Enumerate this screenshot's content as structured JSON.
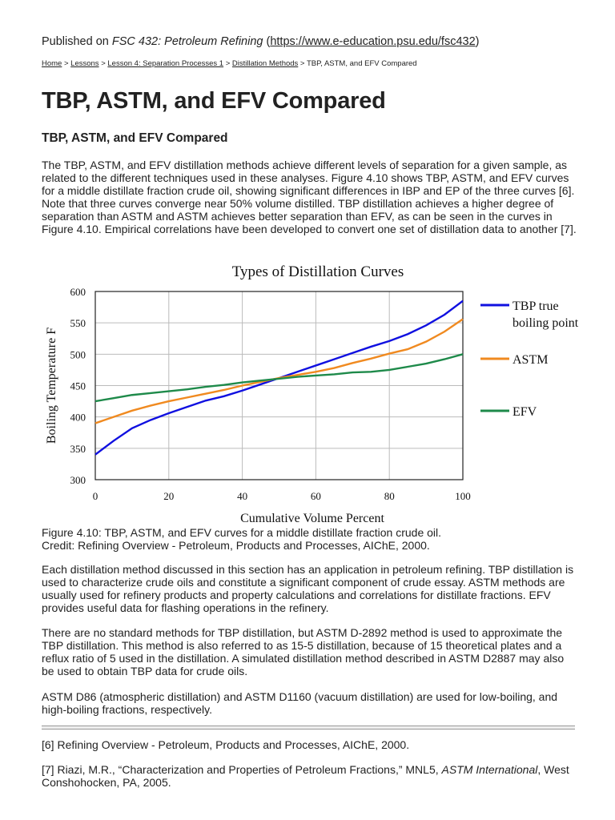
{
  "published": {
    "prefix": "Published on ",
    "site": "FSC 432: Petroleum Refining",
    "open": " (",
    "url": "https://www.e-education.psu.edu/fsc432",
    "close": ")"
  },
  "breadcrumb": [
    {
      "label": "Home",
      "link": true
    },
    {
      "label": "Lessons",
      "link": true
    },
    {
      "label": "Lesson 4: Separation Processes 1",
      "link": true
    },
    {
      "label": "Distillation Methods",
      "link": true
    },
    {
      "label": "TBP, ASTM, and EFV Compared",
      "link": false
    }
  ],
  "page_title": "TBP, ASTM, and EFV Compared",
  "section_title": "TBP, ASTM, and EFV Compared",
  "paragraphs": [
    "The TBP, ASTM, and EFV distillation methods achieve different levels of separation for a given sample, as related to the different techniques used in these analyses. Figure 4.10 shows TBP, ASTM, and EFV curves for a middle distillate fraction crude oil, showing significant differences in IBP and EP of the three curves [6]. Note that three curves converge near 50% volume distilled. TBP distillation achieves a higher degree of separation than ASTM and ASTM achieves better separation than EFV, as can be seen in the curves in Figure 4.10. Empirical correlations have been developed to convert one set of distillation data to another [7].",
    "Each distillation method discussed in this section has an application in petroleum refining. TBP distillation is used to characterize crude oils and constitute a significant component of crude essay. ASTM methods are usually used for refinery products and property calculations and correlations for distillate fractions. EFV provides useful data for flashing operations in the refinery.",
    "There are no standard methods for TBP distillation, but ASTM D-2892 method is used to approximate the TBP distillation. This method is also referred to as 15-5 distillation, because of 15 theoretical plates and a reflux ratio of 5 used in the distillation. A simulated distillation method described in ASTM D2887 may also be used to obtain TBP data for crude oils.",
    "ASTM D86 (atmospheric distillation) and ASTM D1160 (vacuum distillation) are used for low-boiling, and high-boiling fractions, respectively."
  ],
  "caption": {
    "line1": "Figure 4.10: TBP, ASTM, and EFV curves for a middle distillate fraction crude oil.",
    "line2": "Credit: Refining Overview - Petroleum, Products and Processes, AIChE, 2000."
  },
  "footnotes": {
    "f6": "[6] Refining Overview - Petroleum, Products and Processes, AIChE, 2000.",
    "f7_pre": "[7] Riazi, M.R., “Characterization and Properties of Petroleum Fractions,” MNL5, ",
    "f7_em": "ASTM International",
    "f7_post": ", West Conshohocken, PA, 2005."
  },
  "chart_data": {
    "type": "line",
    "title": "Types of Distillation Curves",
    "xlabel": "Cumulative Volume Percent",
    "ylabel": "Boiling Temperature F",
    "xlim": [
      0,
      100
    ],
    "ylim": [
      300,
      600
    ],
    "xticks": [
      "0",
      "20",
      "40",
      "60",
      "80",
      "100"
    ],
    "yticks": [
      "300",
      "350",
      "400",
      "450",
      "500",
      "550",
      "600"
    ],
    "grid": true,
    "legend_position": "right",
    "x": [
      0,
      5,
      10,
      15,
      20,
      25,
      30,
      35,
      40,
      45,
      50,
      55,
      60,
      65,
      70,
      75,
      80,
      85,
      90,
      95,
      100
    ],
    "series": [
      {
        "name": "TBP true boiling point",
        "legend_lines": [
          "TBP true",
          "boiling point"
        ],
        "color": "#1010e0",
        "values": [
          340,
          362,
          382,
          395,
          406,
          416,
          426,
          433,
          442,
          452,
          462,
          472,
          482,
          492,
          502,
          512,
          521,
          532,
          546,
          563,
          585
        ]
      },
      {
        "name": "ASTM",
        "legend_lines": [
          "ASTM"
        ],
        "color": "#f08a20",
        "values": [
          390,
          400,
          410,
          418,
          425,
          431,
          437,
          443,
          450,
          456,
          462,
          467,
          472,
          478,
          486,
          493,
          501,
          508,
          520,
          536,
          556
        ]
      },
      {
        "name": "EFV",
        "legend_lines": [
          "EFV"
        ],
        "color": "#1e8a4a",
        "values": [
          425,
          430,
          435,
          438,
          441,
          444,
          448,
          451,
          455,
          458,
          461,
          464,
          466,
          468,
          471,
          472,
          475,
          480,
          485,
          492,
          500
        ]
      }
    ]
  }
}
